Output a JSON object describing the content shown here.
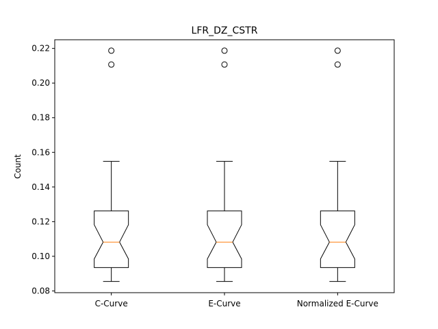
{
  "chart_data": {
    "type": "boxplot",
    "notched": true,
    "title": "LFR_DZ_CSTR",
    "xlabel": "",
    "ylabel": "Count",
    "ylim": [
      0.079,
      0.225
    ],
    "yticks": [
      0.08,
      0.1,
      0.12,
      0.14,
      0.16,
      0.18,
      0.2,
      0.22
    ],
    "yticks_labels": [
      "0.08",
      "0.10",
      "0.12",
      "0.14",
      "0.16",
      "0.18",
      "0.20",
      "0.22"
    ],
    "categories": [
      "C-Curve",
      "E-Curve",
      "Normalized E-Curve"
    ],
    "boxes": [
      {
        "label": "C-Curve",
        "whisker_low": 0.0855,
        "q1": 0.0935,
        "median": 0.1082,
        "q3": 0.1262,
        "whisker_high": 0.1548,
        "notch_low": 0.0985,
        "notch_high": 0.1182,
        "outliers": [
          0.2107,
          0.2187
        ]
      },
      {
        "label": "E-Curve",
        "whisker_low": 0.0855,
        "q1": 0.0935,
        "median": 0.1082,
        "q3": 0.1262,
        "whisker_high": 0.1548,
        "notch_low": 0.0985,
        "notch_high": 0.1182,
        "outliers": [
          0.2107,
          0.2187
        ]
      },
      {
        "label": "Normalized E-Curve",
        "whisker_low": 0.0855,
        "q1": 0.0935,
        "median": 0.1082,
        "q3": 0.1262,
        "whisker_high": 0.1548,
        "notch_low": 0.0985,
        "notch_high": 0.1182,
        "outliers": [
          0.2107,
          0.2187
        ]
      }
    ],
    "colors": {
      "box": "#000000",
      "median": "#ff7f0e",
      "outlier": "#000000"
    },
    "grid": false,
    "legend": "none"
  }
}
